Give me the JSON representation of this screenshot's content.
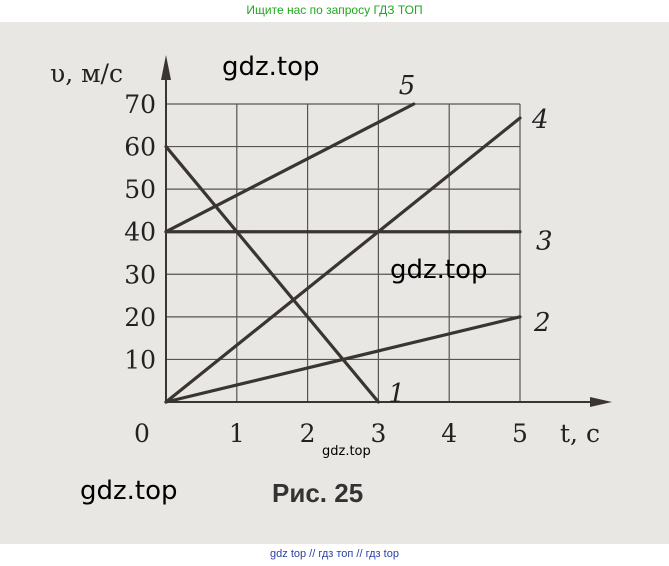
{
  "top_banner": "Ищите нас по запросу ГДЗ ТОП",
  "bottom_banner": "gdz top  //  гдз топ  //  гдз top",
  "watermarks": [
    "gdz.top",
    "gdz.top",
    "gdz.top",
    "gdz.top"
  ],
  "caption": "Рис. 25",
  "chart_data": {
    "type": "line",
    "title": "",
    "xlabel": "t, с",
    "ylabel": "υ, м/с",
    "xlim": [
      0,
      5
    ],
    "ylim": [
      0,
      70
    ],
    "xticks": [
      "0",
      "1",
      "2",
      "3",
      "4",
      "5"
    ],
    "yticks": [
      "10",
      "20",
      "30",
      "40",
      "50",
      "60",
      "70"
    ],
    "grid": true,
    "line_color": "#3a3530",
    "series": [
      {
        "name": "1",
        "x": [
          0,
          3
        ],
        "y": [
          60,
          0
        ]
      },
      {
        "name": "2",
        "x": [
          0,
          5
        ],
        "y": [
          0,
          20
        ]
      },
      {
        "name": "3",
        "x": [
          0,
          5
        ],
        "y": [
          40,
          40
        ]
      },
      {
        "name": "4",
        "x": [
          0,
          5
        ],
        "y": [
          0,
          66.7
        ]
      },
      {
        "name": "5",
        "x": [
          0,
          3.5
        ],
        "y": [
          40,
          70
        ]
      }
    ]
  }
}
